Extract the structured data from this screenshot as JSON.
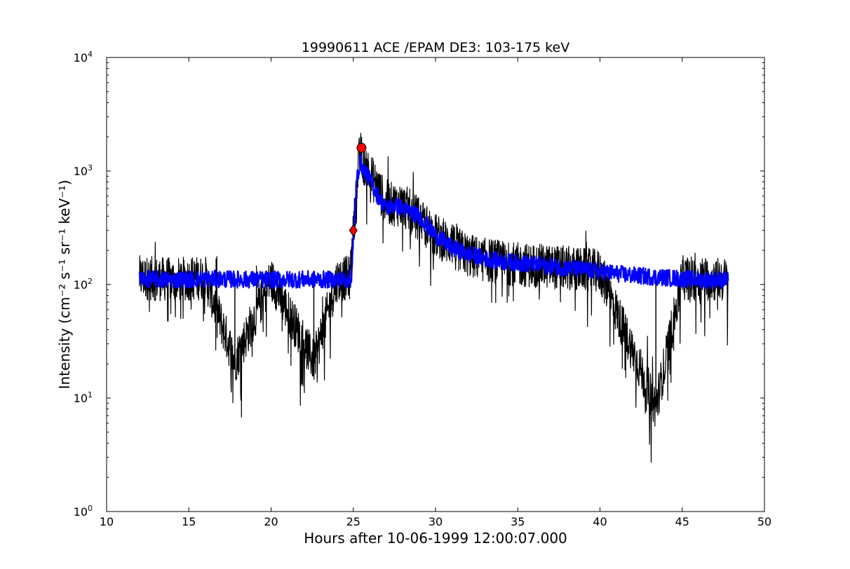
{
  "chart_data": {
    "type": "line",
    "title": "19990611 ACE /EPAM DE3: 103-175 keV",
    "xlabel": "Hours after 10-06-1999 12:00:07.000",
    "ylabel": "Intensity (cm⁻² s⁻¹ sr⁻¹ keV⁻¹)",
    "xlim": [
      10,
      50
    ],
    "ylim": [
      1,
      10000
    ],
    "yscale": "log",
    "x_ticks": [
      "10",
      "15",
      "20",
      "25",
      "30",
      "35",
      "40",
      "45",
      "50"
    ],
    "y_ticks": [
      {
        "base": "10",
        "exp": "0"
      },
      {
        "base": "10",
        "exp": "1"
      },
      {
        "base": "10",
        "exp": "2"
      },
      {
        "base": "10",
        "exp": "3"
      },
      {
        "base": "10",
        "exp": "4"
      }
    ],
    "grid": false,
    "series": [
      {
        "style": "raw-noisy",
        "color": "#000000",
        "x": [
          12.0,
          14.0,
          16.0,
          17.8,
          20.0,
          22.6,
          24.0,
          24.8,
          25.0,
          25.2,
          25.4,
          25.6,
          26.0,
          26.5,
          27.0,
          28.0,
          29.0,
          30.0,
          31.0,
          32.0,
          33.0,
          35.0,
          38.0,
          40.0,
          43.4,
          45.0,
          47.8
        ],
        "values": [
          115,
          110,
          115,
          21,
          112,
          21,
          110,
          115,
          280,
          700,
          1500,
          1200,
          950,
          700,
          520,
          500,
          380,
          270,
          220,
          180,
          165,
          150,
          140,
          130,
          8.3,
          115,
          110
        ]
      },
      {
        "style": "smoothed",
        "color": "#0000ff",
        "x": [
          12.0,
          14.0,
          16.0,
          18.0,
          20.0,
          22.0,
          24.0,
          24.9,
          25.0,
          25.2,
          25.4,
          25.6,
          26.0,
          26.5,
          27.0,
          27.5,
          28.0,
          29.0,
          30.0,
          31.0,
          32.0,
          33.0,
          34.0,
          35.0,
          36.0,
          38.0,
          40.0,
          42.0,
          44.0,
          46.0,
          47.8
        ],
        "values": [
          112,
          110,
          112,
          111,
          110,
          111,
          110,
          112,
          250,
          800,
          1200,
          1050,
          850,
          600,
          470,
          500,
          470,
          400,
          270,
          210,
          185,
          170,
          160,
          155,
          150,
          140,
          130,
          120,
          115,
          110,
          110
        ]
      }
    ],
    "markers": [
      {
        "shape": "diamond",
        "color": "#ff0000",
        "x": 25.0,
        "y": 300
      },
      {
        "shape": "circle",
        "color": "#ff0000",
        "x": 25.5,
        "y": 1600
      }
    ]
  }
}
